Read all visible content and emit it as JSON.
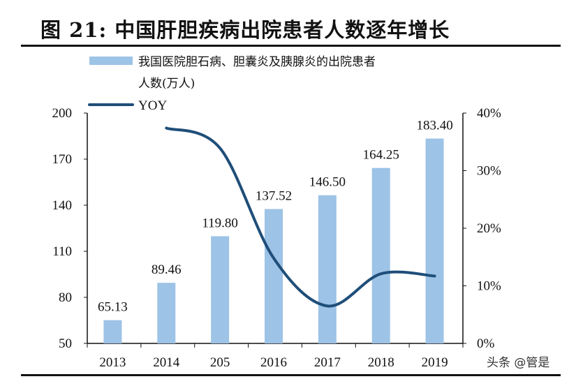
{
  "title": "图 21:  中国肝胆疾病出院患者人数逐年增长",
  "watermark": "头条 @管是",
  "chart_data": {
    "type": "bar+line",
    "categories": [
      "2013",
      "2014",
      "205",
      "2016",
      "2017",
      "2018",
      "2019"
    ],
    "series": [
      {
        "name": "我国医院胆石病、胆囊炎及胰腺炎的出院患者人数(万人)",
        "name_lines": [
          "我国医院胆石病、胆囊炎及胰腺炎的出院患者",
          "人数(万人)"
        ],
        "type": "bar",
        "axis": "left",
        "color": "#9dc3e6",
        "values": [
          65.13,
          89.46,
          119.8,
          137.52,
          146.5,
          164.25,
          183.4
        ],
        "labels": [
          "65.13",
          "89.46",
          "119.80",
          "137.52",
          "146.50",
          "164.25",
          "183.40"
        ]
      },
      {
        "name": "YOY",
        "type": "line",
        "axis": "right",
        "color": "#1f4e79",
        "values": [
          null,
          37.4,
          33.9,
          14.8,
          6.5,
          12.1,
          11.7
        ]
      }
    ],
    "left_axis": {
      "ylim": [
        50,
        200
      ],
      "ticks": [
        "50",
        "80",
        "110",
        "140",
        "170",
        "200"
      ]
    },
    "right_axis": {
      "ylim": [
        0,
        40
      ],
      "ticks": [
        "0%",
        "10%",
        "20%",
        "30%",
        "40%"
      ]
    },
    "legend": "top-left",
    "grid": false
  }
}
